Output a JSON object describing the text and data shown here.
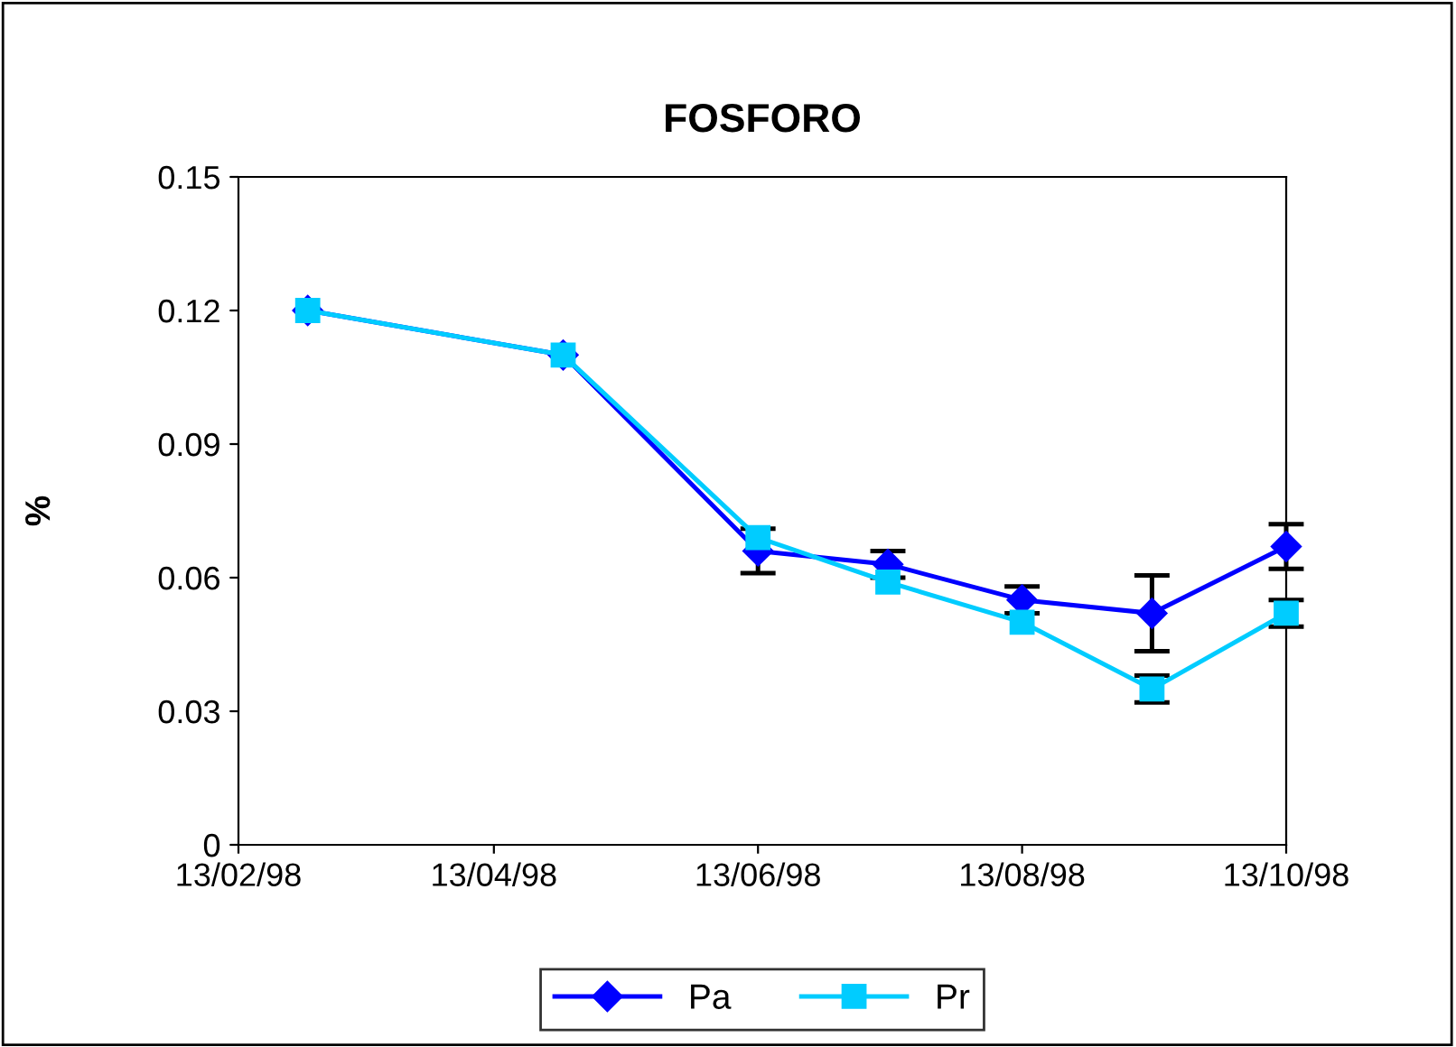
{
  "chart_data": {
    "type": "line",
    "title": "FOSFORO",
    "ylabel": "%",
    "x": [
      "1998-03-01",
      "1998-04-29",
      "1998-06-13",
      "1998-07-13",
      "1998-08-13",
      "1998-09-12",
      "1998-10-13"
    ],
    "series": [
      {
        "name": "Pa",
        "color": "#0000ff",
        "marker": "diamond",
        "values": [
          0.12,
          0.11,
          0.066,
          0.063,
          0.055,
          0.052,
          0.067
        ],
        "errors": [
          null,
          null,
          0.005,
          0.003,
          0.003,
          0.0085,
          0.005
        ]
      },
      {
        "name": "Pr",
        "color": "#00ccff",
        "marker": "square",
        "values": [
          0.12,
          0.11,
          0.069,
          0.059,
          0.05,
          0.035,
          0.052
        ],
        "errors": [
          null,
          null,
          null,
          null,
          null,
          0.003,
          0.003
        ]
      }
    ],
    "xlim": [
      "1998-02-13",
      "1998-10-13"
    ],
    "xticks": [
      {
        "value": "1998-02-13",
        "label": "13/02/98"
      },
      {
        "value": "1998-04-13",
        "label": "13/04/98"
      },
      {
        "value": "1998-06-13",
        "label": "13/06/98"
      },
      {
        "value": "1998-08-13",
        "label": "13/08/98"
      },
      {
        "value": "1998-10-13",
        "label": "13/10/98"
      }
    ],
    "ylim": [
      0,
      0.15
    ],
    "yticks": [
      0,
      0.03,
      0.06,
      0.09,
      0.12,
      0.15
    ],
    "grid": false,
    "legend": "bottom",
    "line_style": "solid"
  }
}
